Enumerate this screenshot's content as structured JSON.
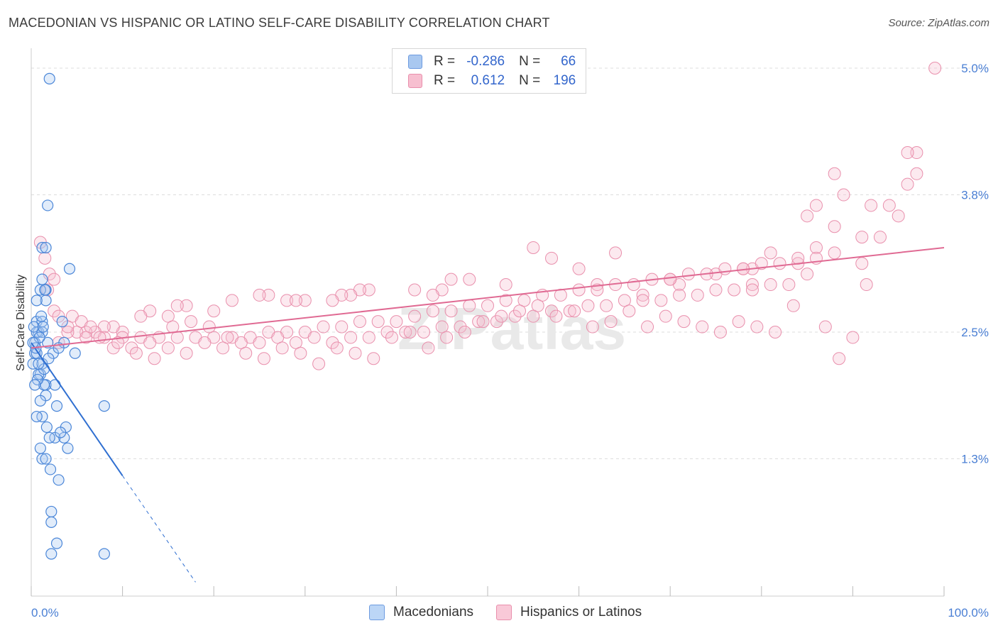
{
  "title": "MACEDONIAN VS HISPANIC OR LATINO SELF-CARE DISABILITY CORRELATION CHART",
  "source": "Source: ZipAtlas.com",
  "watermark": "ZIPatlas",
  "legend": {
    "r_label": "R =",
    "n_label": "N =",
    "rows": [
      {
        "r": "-0.286",
        "n": "66",
        "color": "#a9c8f0",
        "border": "#6d9be0"
      },
      {
        "r": "0.612",
        "n": "196",
        "color": "#f7bfd0",
        "border": "#e98fac"
      }
    ]
  },
  "bottom_legend": [
    {
      "label": "Macedonians",
      "color": "#bcd6f6",
      "border": "#6d9be0"
    },
    {
      "label": "Hispanics or Latinos",
      "color": "#f9c9d8",
      "border": "#e98fac"
    }
  ],
  "colors": {
    "blue": "#4a86d8",
    "blue_line": "#2f6fd1",
    "pink": "#e98fac",
    "pink_line": "#e06a93",
    "grid": "#dddddd"
  },
  "chart_data": {
    "type": "scatter",
    "title": "MACEDONIAN VS HISPANIC OR LATINO SELF-CARE DISABILITY CORRELATION CHART",
    "xlabel": "",
    "ylabel": "Self-Care Disability",
    "xlim": [
      0,
      100
    ],
    "ylim": [
      0.0,
      5.2
    ],
    "x_tick_labels": [
      "0.0%",
      "100.0%"
    ],
    "y_ticks": [
      1.3,
      2.5,
      3.8,
      5.0
    ],
    "y_tick_labels": [
      "1.3%",
      "2.5%",
      "3.8%",
      "5.0%"
    ],
    "grid": true,
    "series": [
      {
        "name": "Macedonians",
        "trend": {
          "x0": 0,
          "y0": 2.4,
          "x1": 10,
          "y1": 1.14,
          "dashed_to_x": 18
        },
        "points": [
          [
            2.0,
            4.9
          ],
          [
            1.8,
            3.7
          ],
          [
            1.2,
            3.3
          ],
          [
            1.6,
            3.3
          ],
          [
            4.2,
            3.1
          ],
          [
            1.2,
            3.0
          ],
          [
            1.6,
            2.9
          ],
          [
            1.0,
            2.9
          ],
          [
            1.6,
            2.8
          ],
          [
            0.6,
            2.8
          ],
          [
            0.6,
            2.6
          ],
          [
            1.2,
            2.6
          ],
          [
            0.8,
            2.5
          ],
          [
            0.4,
            2.4
          ],
          [
            0.6,
            2.5
          ],
          [
            1.2,
            2.5
          ],
          [
            3.4,
            2.6
          ],
          [
            0.4,
            2.3
          ],
          [
            0.6,
            2.3
          ],
          [
            0.2,
            2.2
          ],
          [
            1.8,
            2.4
          ],
          [
            3.6,
            2.4
          ],
          [
            4.8,
            2.3
          ],
          [
            1.2,
            2.2
          ],
          [
            1.0,
            2.1
          ],
          [
            0.8,
            2.1
          ],
          [
            1.6,
            2.0
          ],
          [
            1.4,
            2.0
          ],
          [
            1.6,
            1.9
          ],
          [
            2.8,
            1.8
          ],
          [
            8.0,
            1.8
          ],
          [
            1.2,
            1.7
          ],
          [
            0.6,
            1.7
          ],
          [
            3.8,
            1.6
          ],
          [
            2.6,
            1.5
          ],
          [
            2.0,
            1.5
          ],
          [
            3.6,
            1.5
          ],
          [
            1.0,
            1.4
          ],
          [
            4.0,
            1.4
          ],
          [
            1.2,
            1.3
          ],
          [
            1.6,
            1.3
          ],
          [
            3.0,
            1.1
          ],
          [
            2.2,
            0.8
          ],
          [
            2.2,
            0.7
          ],
          [
            2.8,
            0.5
          ],
          [
            2.2,
            0.4
          ],
          [
            8.0,
            0.4
          ],
          [
            0.5,
            2.35
          ],
          [
            0.9,
            2.45
          ],
          [
            1.4,
            2.15
          ],
          [
            0.3,
            2.55
          ],
          [
            2.4,
            2.3
          ],
          [
            1.1,
            2.65
          ],
          [
            0.7,
            2.05
          ],
          [
            3.2,
            1.55
          ],
          [
            1.9,
            2.25
          ],
          [
            0.2,
            2.4
          ],
          [
            1.5,
            2.9
          ],
          [
            0.8,
            2.2
          ],
          [
            2.6,
            2.0
          ],
          [
            1.7,
            1.6
          ],
          [
            0.4,
            2.0
          ],
          [
            3.0,
            2.35
          ],
          [
            1.0,
            1.85
          ],
          [
            2.1,
            1.2
          ],
          [
            1.3,
            2.55
          ]
        ]
      },
      {
        "name": "Hispanics or Latinos",
        "trend": {
          "x0": 0,
          "y0": 2.35,
          "x1": 100,
          "y1": 3.3
        },
        "points": [
          [
            99,
            5.0
          ],
          [
            97,
            4.2
          ],
          [
            96,
            4.2
          ],
          [
            88,
            4.0
          ],
          [
            96,
            3.9
          ],
          [
            97,
            4.0
          ],
          [
            89,
            3.8
          ],
          [
            92,
            3.7
          ],
          [
            94,
            3.7
          ],
          [
            86,
            3.7
          ],
          [
            95,
            3.6
          ],
          [
            85,
            3.6
          ],
          [
            88,
            3.5
          ],
          [
            91,
            3.4
          ],
          [
            93,
            3.4
          ],
          [
            86,
            3.3
          ],
          [
            81,
            3.25
          ],
          [
            91,
            3.15
          ],
          [
            84,
            3.15
          ],
          [
            79,
            3.1
          ],
          [
            78,
            3.1
          ],
          [
            85,
            3.05
          ],
          [
            75,
            3.05
          ],
          [
            79,
            2.95
          ],
          [
            70,
            3.0
          ],
          [
            71,
            2.95
          ],
          [
            67,
            2.85
          ],
          [
            62,
            2.95
          ],
          [
            57,
            3.2
          ],
          [
            64,
            3.25
          ],
          [
            55,
            3.3
          ],
          [
            60,
            3.1
          ],
          [
            52,
            2.95
          ],
          [
            48,
            3.0
          ],
          [
            46,
            3.0
          ],
          [
            45,
            2.9
          ],
          [
            42,
            2.9
          ],
          [
            44,
            2.85
          ],
          [
            37,
            2.9
          ],
          [
            36,
            2.9
          ],
          [
            35,
            2.85
          ],
          [
            34,
            2.85
          ],
          [
            33,
            2.8
          ],
          [
            30,
            2.8
          ],
          [
            28,
            2.8
          ],
          [
            29,
            2.8
          ],
          [
            26,
            2.85
          ],
          [
            25,
            2.85
          ],
          [
            22,
            2.8
          ],
          [
            20,
            2.7
          ],
          [
            17,
            2.75
          ],
          [
            16,
            2.75
          ],
          [
            15,
            2.65
          ],
          [
            13,
            2.7
          ],
          [
            12,
            2.65
          ],
          [
            10,
            2.5
          ],
          [
            9,
            2.55
          ],
          [
            8,
            2.55
          ],
          [
            7,
            2.5
          ],
          [
            6,
            2.5
          ],
          [
            5,
            2.5
          ],
          [
            4,
            2.5
          ],
          [
            3,
            2.4
          ],
          [
            2.5,
            2.7
          ],
          [
            3,
            2.65
          ],
          [
            1,
            3.35
          ],
          [
            1.5,
            3.2
          ],
          [
            2,
            3.05
          ],
          [
            2.5,
            3.0
          ],
          [
            1.8,
            2.9
          ],
          [
            4,
            2.55
          ],
          [
            6,
            2.45
          ],
          [
            8,
            2.45
          ],
          [
            10,
            2.45
          ],
          [
            12,
            2.45
          ],
          [
            14,
            2.45
          ],
          [
            16,
            2.45
          ],
          [
            18,
            2.45
          ],
          [
            20,
            2.45
          ],
          [
            22,
            2.45
          ],
          [
            24,
            2.45
          ],
          [
            26,
            2.5
          ],
          [
            28,
            2.5
          ],
          [
            30,
            2.5
          ],
          [
            32,
            2.55
          ],
          [
            34,
            2.55
          ],
          [
            36,
            2.6
          ],
          [
            38,
            2.6
          ],
          [
            40,
            2.6
          ],
          [
            42,
            2.65
          ],
          [
            44,
            2.7
          ],
          [
            46,
            2.7
          ],
          [
            48,
            2.75
          ],
          [
            50,
            2.75
          ],
          [
            52,
            2.8
          ],
          [
            54,
            2.8
          ],
          [
            56,
            2.85
          ],
          [
            58,
            2.85
          ],
          [
            60,
            2.9
          ],
          [
            62,
            2.9
          ],
          [
            64,
            2.95
          ],
          [
            66,
            2.95
          ],
          [
            68,
            3.0
          ],
          [
            70,
            3.0
          ],
          [
            72,
            3.05
          ],
          [
            74,
            3.05
          ],
          [
            76,
            3.1
          ],
          [
            78,
            3.1
          ],
          [
            80,
            3.15
          ],
          [
            82,
            3.15
          ],
          [
            84,
            3.2
          ],
          [
            86,
            3.2
          ],
          [
            88,
            3.25
          ],
          [
            9,
            2.35
          ],
          [
            11,
            2.35
          ],
          [
            13,
            2.4
          ],
          [
            15,
            2.35
          ],
          [
            17,
            2.3
          ],
          [
            19,
            2.4
          ],
          [
            21,
            2.35
          ],
          [
            23,
            2.4
          ],
          [
            25,
            2.4
          ],
          [
            27,
            2.45
          ],
          [
            29,
            2.4
          ],
          [
            31,
            2.45
          ],
          [
            33,
            2.4
          ],
          [
            35,
            2.45
          ],
          [
            37,
            2.45
          ],
          [
            39,
            2.5
          ],
          [
            41,
            2.5
          ],
          [
            43,
            2.5
          ],
          [
            45,
            2.55
          ],
          [
            47,
            2.55
          ],
          [
            49,
            2.6
          ],
          [
            51,
            2.6
          ],
          [
            53,
            2.65
          ],
          [
            55,
            2.65
          ],
          [
            57,
            2.7
          ],
          [
            59,
            2.7
          ],
          [
            61,
            2.75
          ],
          [
            63,
            2.75
          ],
          [
            65,
            2.8
          ],
          [
            67,
            2.8
          ],
          [
            69,
            2.8
          ],
          [
            71,
            2.85
          ],
          [
            73,
            2.85
          ],
          [
            75,
            2.9
          ],
          [
            77,
            2.9
          ],
          [
            79,
            2.9
          ],
          [
            81,
            2.95
          ],
          [
            83,
            2.95
          ],
          [
            4.5,
            2.65
          ],
          [
            5.5,
            2.6
          ],
          [
            6.5,
            2.55
          ],
          [
            7.5,
            2.45
          ],
          [
            9.5,
            2.4
          ],
          [
            11.5,
            2.3
          ],
          [
            13.5,
            2.25
          ],
          [
            15.5,
            2.55
          ],
          [
            17.5,
            2.6
          ],
          [
            19.5,
            2.55
          ],
          [
            21.5,
            2.45
          ],
          [
            23.5,
            2.3
          ],
          [
            25.5,
            2.25
          ],
          [
            27.5,
            2.35
          ],
          [
            29.5,
            2.3
          ],
          [
            31.5,
            2.2
          ],
          [
            33.5,
            2.35
          ],
          [
            35.5,
            2.3
          ],
          [
            37.5,
            2.25
          ],
          [
            39.5,
            2.45
          ],
          [
            41.5,
            2.5
          ],
          [
            43.5,
            2.35
          ],
          [
            45.5,
            2.45
          ],
          [
            47.5,
            2.5
          ],
          [
            49.5,
            2.6
          ],
          [
            51.5,
            2.65
          ],
          [
            53.5,
            2.7
          ],
          [
            55.5,
            2.75
          ],
          [
            57.5,
            2.65
          ],
          [
            59.5,
            2.7
          ],
          [
            61.5,
            2.55
          ],
          [
            63.5,
            2.6
          ],
          [
            65.5,
            2.7
          ],
          [
            67.5,
            2.55
          ],
          [
            69.5,
            2.65
          ],
          [
            71.5,
            2.6
          ],
          [
            73.5,
            2.55
          ],
          [
            75.5,
            2.5
          ],
          [
            77.5,
            2.6
          ],
          [
            79.5,
            2.55
          ],
          [
            81.5,
            2.5
          ],
          [
            83.5,
            2.75
          ],
          [
            87,
            2.55
          ],
          [
            88.5,
            2.25
          ],
          [
            90,
            2.45
          ],
          [
            91.5,
            2.95
          ]
        ]
      }
    ]
  }
}
